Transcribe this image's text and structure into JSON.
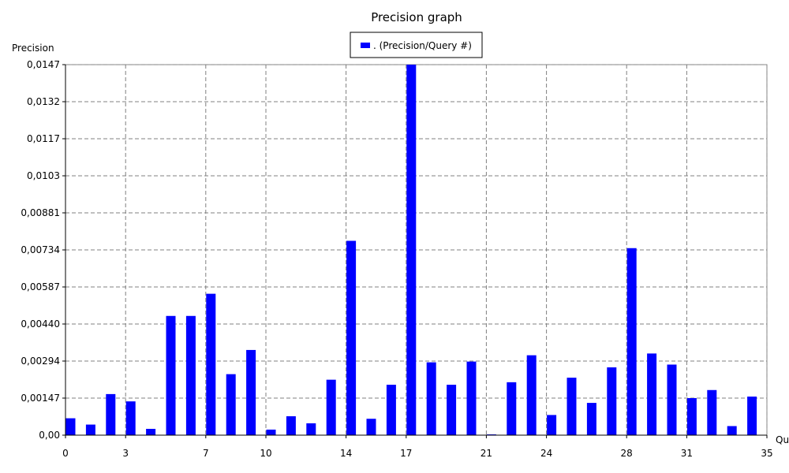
{
  "chart_data": {
    "type": "bar",
    "title": "Precision graph",
    "ylabel": "Precision",
    "xlabel": "Qu",
    "legend": {
      "label": ". (Precision/Query #)",
      "placement": "top-center",
      "color": "#0000ff"
    },
    "bar_color": "#0000ff",
    "grid": true,
    "xlim": [
      0,
      35
    ],
    "ylim": [
      0,
      0.0147
    ],
    "x_ticks": [
      0,
      3,
      7,
      10,
      14,
      17,
      21,
      24,
      28,
      31,
      35
    ],
    "y_ticks": [
      "0,00",
      "0,00147",
      "0,00294",
      "0,00440",
      "0,00587",
      "0,00734",
      "0,00881",
      "0,0103",
      "0,0117",
      "0,0132",
      "0,0147"
    ],
    "x": [
      0,
      1,
      2,
      3,
      4,
      5,
      6,
      7,
      8,
      9,
      10,
      11,
      12,
      13,
      14,
      15,
      16,
      17,
      18,
      19,
      20,
      21,
      22,
      23,
      24,
      25,
      26,
      27,
      28,
      29,
      30,
      31,
      32,
      33,
      34
    ],
    "values": [
      0.00067,
      0.00042,
      0.00163,
      0.00134,
      0.00025,
      0.00473,
      0.00473,
      0.00561,
      0.00242,
      0.00338,
      0.00022,
      0.00075,
      0.00047,
      0.0022,
      0.00771,
      0.00065,
      0.002,
      0.0147,
      0.00289,
      0.002,
      0.00292,
      3e-05,
      0.0021,
      0.00317,
      0.0008,
      0.00228,
      0.00128,
      0.00269,
      0.00742,
      0.00324,
      0.0028,
      0.00147,
      0.00179,
      0.00036,
      0.00153
    ]
  }
}
